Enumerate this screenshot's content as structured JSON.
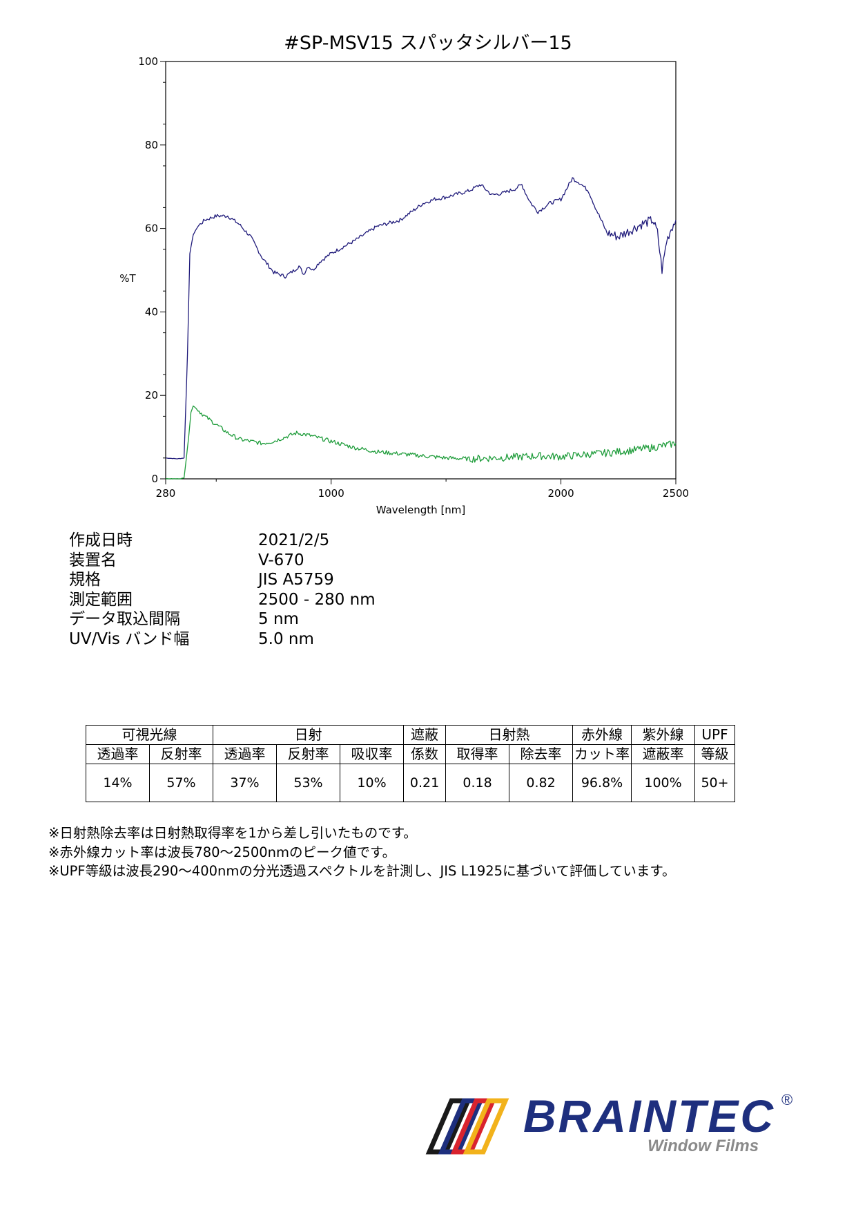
{
  "title": "#SP-MSV15  スパッタシルバー15",
  "chart_data": {
    "type": "line",
    "xlabel": "Wavelength [nm]",
    "ylabel": "%T",
    "xlim": [
      280,
      2500
    ],
    "ylim": [
      0,
      100
    ],
    "x_ticks": [
      280,
      1000,
      2000,
      2500
    ],
    "y_ticks": [
      0,
      20,
      40,
      60,
      80,
      100
    ],
    "grid": false,
    "series": [
      {
        "color": "#1f1a7a",
        "x": [
          280,
          330,
          360,
          375,
          385,
          400,
          420,
          450,
          500,
          550,
          600,
          650,
          700,
          750,
          800,
          840,
          860,
          880,
          900,
          920,
          950,
          1000,
          1100,
          1200,
          1300,
          1400,
          1450,
          1500,
          1600,
          1650,
          1700,
          1750,
          1800,
          1830,
          1850,
          1870,
          1900,
          1950,
          2000,
          2030,
          2050,
          2080,
          2120,
          2150,
          2200,
          2250,
          2300,
          2350,
          2400,
          2420,
          2440,
          2460,
          2480,
          2500
        ],
        "values": [
          5,
          4.8,
          5,
          30,
          54,
          58.5,
          60.5,
          62,
          63,
          63,
          61,
          58,
          53,
          49.5,
          48.5,
          50,
          51,
          49,
          51,
          50,
          52,
          54,
          57,
          60.5,
          62,
          66,
          67,
          67.5,
          69,
          70.5,
          68,
          68.5,
          69.5,
          70.5,
          68,
          66,
          64,
          66,
          67,
          70,
          72,
          71,
          69,
          65,
          59,
          58,
          59.5,
          61,
          62,
          59,
          50,
          57,
          60,
          62
        ]
      },
      {
        "color": "#1e9c3a",
        "x": [
          280,
          340,
          360,
          380,
          390,
          400,
          420,
          450,
          500,
          550,
          600,
          650,
          700,
          750,
          800,
          850,
          900,
          1000,
          1100,
          1200,
          1300,
          1400,
          1500,
          1600,
          1700,
          1800,
          1900,
          2000,
          2100,
          2200,
          2300,
          2400,
          2500
        ],
        "values": [
          0,
          0,
          0.2,
          10,
          16,
          17.5,
          16.5,
          15,
          13,
          11,
          9.5,
          9,
          8.5,
          9,
          10,
          11,
          10.5,
          9,
          7.5,
          6.5,
          6,
          5.5,
          5,
          4.8,
          5,
          5.2,
          5.5,
          5.3,
          5.8,
          6.2,
          6.8,
          7.5,
          8.5
        ]
      }
    ]
  },
  "meta": [
    {
      "key": "作成日時",
      "value": "2021/2/5"
    },
    {
      "key": "装置名",
      "value": "V-670"
    },
    {
      "key": "規格",
      "value": "JIS A5759"
    },
    {
      "key": "測定範囲",
      "value": "2500 - 280 nm"
    },
    {
      "key": "データ取込間隔",
      "value": "5 nm"
    },
    {
      "key": "UV/Vis バンド幅",
      "value": "5.0 nm"
    }
  ],
  "table": {
    "groups": {
      "visible": "可視光線",
      "solar": "日射",
      "shading_top": "遮蔽",
      "shading_bottom": "係数",
      "solar_heat": "日射熱",
      "ir_top": "赤外線",
      "ir_bottom": "カット率",
      "uv_top": "紫外線",
      "uv_bottom": "遮蔽率",
      "upf_top": "UPF",
      "upf_bottom": "等級"
    },
    "subheaders": {
      "vis_trans": "透過率",
      "vis_refl": "反射率",
      "sol_trans": "透過率",
      "sol_refl": "反射率",
      "sol_abs": "吸収率",
      "heat_gain": "取得率",
      "heat_reject": "除去率"
    },
    "values": [
      "14%",
      "57%",
      "37%",
      "53%",
      "10%",
      "0.21",
      "0.18",
      "0.82",
      "96.8%",
      "100%",
      "50+"
    ]
  },
  "notes": [
    "※日射熱除去率は日射熱取得率を1から差し引いたものです。",
    "※赤外線カット率は波長780～2500nmのピーク値です。",
    "※UPF等級は波長290～400nmの分光透過スペクトルを計測し、JIS L1925に基づいて評価しています。"
  ],
  "logo": {
    "brand": "BRAINTEC",
    "registered": "®",
    "tagline": "Window Films",
    "colors": [
      "#1a1a1a",
      "#1e2f7e",
      "#d9232e",
      "#f2b21b"
    ]
  }
}
